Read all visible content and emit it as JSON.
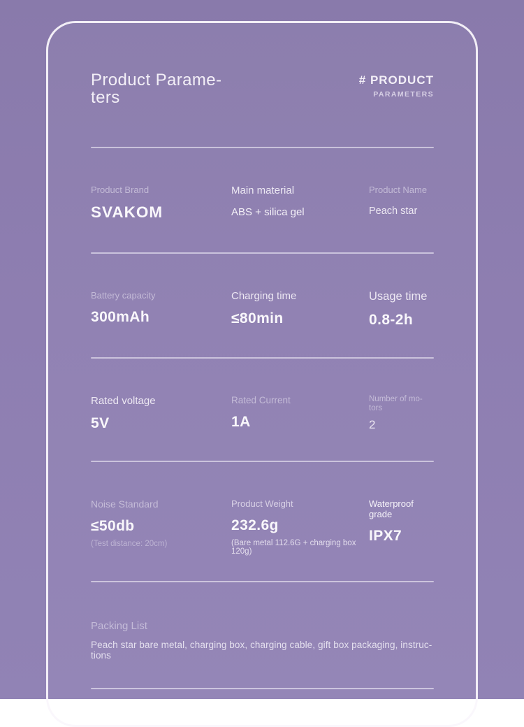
{
  "colors": {
    "background_purple": "#8e7eb1",
    "card_border": "#faf6fc",
    "value_text": "#f9f7fb",
    "divider": "#f5f1fa"
  },
  "header": {
    "title": "Product Parame-\nters",
    "hashtag": "# PRODUCT",
    "hashtag_sub": "PARAMETERS"
  },
  "rows": [
    {
      "cells": [
        {
          "label": "Product Brand",
          "value": "SVAKOM"
        },
        {
          "label": "Main material",
          "value": "ABS + silica gel"
        },
        {
          "label": "Product Name",
          "value": "Peach star"
        }
      ]
    },
    {
      "cells": [
        {
          "label": "Battery capacity",
          "value": "300mAh"
        },
        {
          "label": "Charging time",
          "value": "≤80min"
        },
        {
          "label": "Usage time",
          "value": "0.8-2h"
        }
      ]
    },
    {
      "cells": [
        {
          "label": "Rated voltage",
          "value": "5V"
        },
        {
          "label": "Rated Current",
          "value": "1A"
        },
        {
          "label": "Number of mo-\ntors",
          "value": "2"
        }
      ]
    },
    {
      "cells": [
        {
          "label": "Noise Standard",
          "value": "≤50db",
          "note": "(Test distance: 20cm)"
        },
        {
          "label": "Product Weight",
          "value": "232.6g",
          "note": "(Bare metal 112.6G + charging box 120g)"
        },
        {
          "label": "Waterproof grade",
          "value": "IPX7"
        }
      ]
    }
  ],
  "packing": {
    "label": "Packing List",
    "text": "Peach star bare metal, charging box, charging cable, gift box packaging, instruc-\ntions"
  }
}
